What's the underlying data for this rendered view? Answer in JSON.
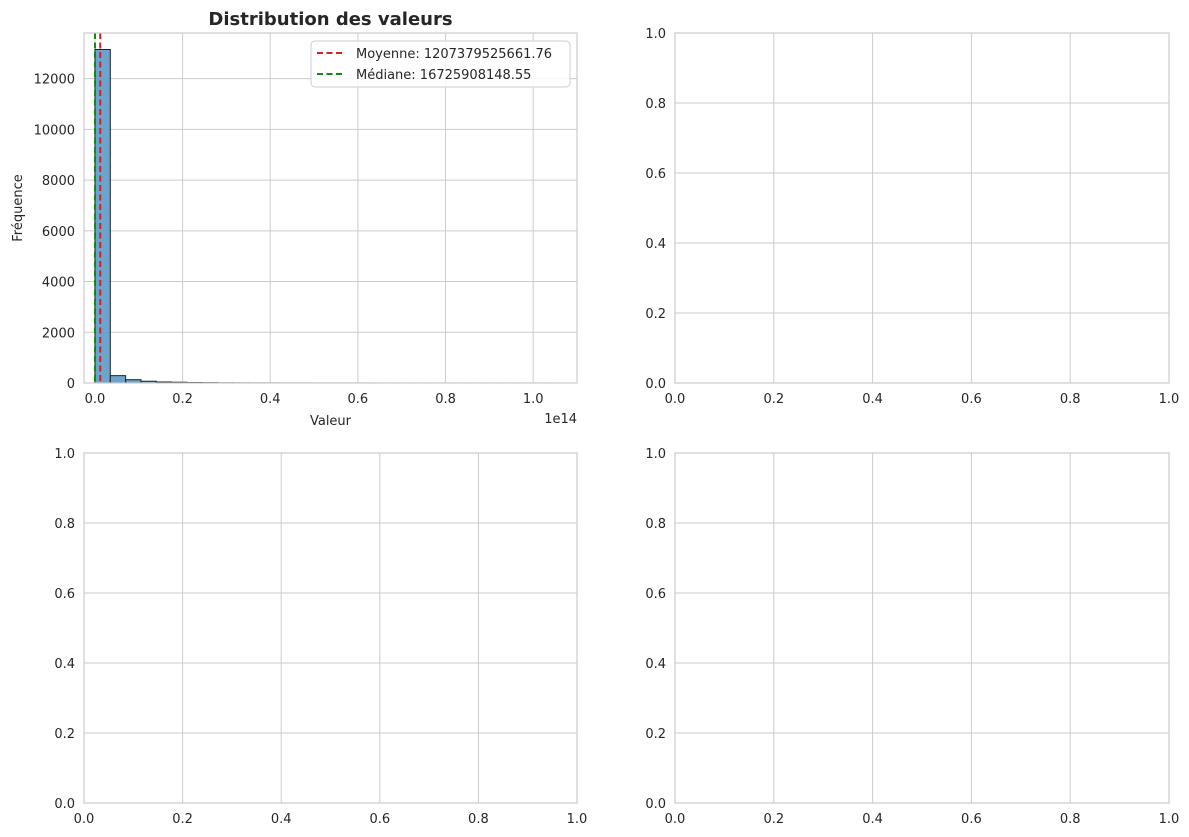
{
  "chart_data": [
    {
      "type": "histogram",
      "title": "Distribution des valeurs",
      "xlabel": "Valeur",
      "ylabel": "Fréquence",
      "x_offset_text": "1e14",
      "x_scale": 100000000000000,
      "xlim": [
        -0.025,
        1.1
      ],
      "ylim": [
        0,
        13800
      ],
      "xticks": [
        0.0,
        0.2,
        0.4,
        0.6,
        0.8,
        1.0
      ],
      "xtick_labels": [
        "0.0",
        "0.2",
        "0.4",
        "0.6",
        "0.8",
        "1.0"
      ],
      "yticks": [
        0,
        2000,
        4000,
        6000,
        8000,
        10000,
        12000
      ],
      "ytick_labels": [
        "0",
        "2000",
        "4000",
        "6000",
        "8000",
        "10000",
        "12000"
      ],
      "grid": true,
      "bar_color": "#5b9bc8",
      "bar_edge_color": "#1f1f1f",
      "bins": [
        {
          "x0": 0.0,
          "x1": 0.035,
          "count": 13150
        },
        {
          "x0": 0.035,
          "x1": 0.07,
          "count": 290
        },
        {
          "x0": 0.07,
          "x1": 0.105,
          "count": 130
        },
        {
          "x0": 0.105,
          "x1": 0.14,
          "count": 70
        },
        {
          "x0": 0.14,
          "x1": 0.175,
          "count": 40
        },
        {
          "x0": 0.175,
          "x1": 0.21,
          "count": 30
        },
        {
          "x0": 0.21,
          "x1": 0.245,
          "count": 20
        },
        {
          "x0": 0.245,
          "x1": 0.28,
          "count": 15
        },
        {
          "x0": 0.28,
          "x1": 0.315,
          "count": 8
        },
        {
          "x0": 0.315,
          "x1": 0.35,
          "count": 6
        },
        {
          "x0": 0.35,
          "x1": 0.385,
          "count": 5
        },
        {
          "x0": 0.385,
          "x1": 0.42,
          "count": 4
        },
        {
          "x0": 0.42,
          "x1": 0.455,
          "count": 3
        },
        {
          "x0": 0.455,
          "x1": 0.49,
          "count": 3
        },
        {
          "x0": 0.49,
          "x1": 0.525,
          "count": 2
        },
        {
          "x0": 0.525,
          "x1": 0.56,
          "count": 2
        },
        {
          "x0": 0.56,
          "x1": 0.595,
          "count": 2
        },
        {
          "x0": 0.595,
          "x1": 0.63,
          "count": 2
        },
        {
          "x0": 0.63,
          "x1": 0.665,
          "count": 1
        },
        {
          "x0": 0.665,
          "x1": 0.7,
          "count": 1
        },
        {
          "x0": 0.7,
          "x1": 0.735,
          "count": 1
        },
        {
          "x0": 0.735,
          "x1": 0.77,
          "count": 1
        },
        {
          "x0": 0.77,
          "x1": 0.805,
          "count": 1
        },
        {
          "x0": 0.805,
          "x1": 0.84,
          "count": 1
        },
        {
          "x0": 0.84,
          "x1": 0.875,
          "count": 1
        },
        {
          "x0": 0.875,
          "x1": 0.91,
          "count": 1
        },
        {
          "x0": 0.91,
          "x1": 0.945,
          "count": 1
        },
        {
          "x0": 0.945,
          "x1": 0.98,
          "count": 1
        },
        {
          "x0": 0.98,
          "x1": 1.015,
          "count": 1
        },
        {
          "x0": 1.015,
          "x1": 1.05,
          "count": 1
        }
      ],
      "reference_lines": [
        {
          "label": "Moyenne: 1207379525661.76",
          "value": 1207379525661.76,
          "color": "#d62020",
          "style": "dashed"
        },
        {
          "label": "Médiane: 16725908148.55",
          "value": 16725908148.55,
          "color": "#118811",
          "style": "dashed"
        }
      ],
      "legend_position": "top-right"
    },
    {
      "type": "empty",
      "xlim": [
        0,
        1
      ],
      "ylim": [
        0,
        1
      ],
      "xtick_labels": [
        "0.0",
        "0.2",
        "0.4",
        "0.6",
        "0.8",
        "1.0"
      ],
      "ytick_labels": [
        "0.0",
        "0.2",
        "0.4",
        "0.6",
        "0.8",
        "1.0"
      ],
      "grid": true
    },
    {
      "type": "empty",
      "xlim": [
        0,
        1
      ],
      "ylim": [
        0,
        1
      ],
      "xtick_labels": [
        "0.0",
        "0.2",
        "0.4",
        "0.6",
        "0.8",
        "1.0"
      ],
      "ytick_labels": [
        "0.0",
        "0.2",
        "0.4",
        "0.6",
        "0.8",
        "1.0"
      ],
      "grid": true
    },
    {
      "type": "empty",
      "xlim": [
        0,
        1
      ],
      "ylim": [
        0,
        1
      ],
      "xtick_labels": [
        "0.0",
        "0.2",
        "0.4",
        "0.6",
        "0.8",
        "1.0"
      ],
      "ytick_labels": [
        "0.0",
        "0.2",
        "0.4",
        "0.6",
        "0.8",
        "1.0"
      ],
      "grid": true
    }
  ]
}
